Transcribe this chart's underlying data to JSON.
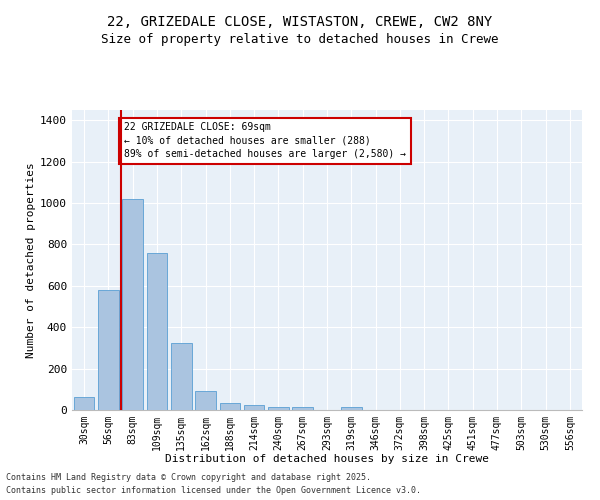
{
  "title_line1": "22, GRIZEDALE CLOSE, WISTASTON, CREWE, CW2 8NY",
  "title_line2": "Size of property relative to detached houses in Crewe",
  "xlabel": "Distribution of detached houses by size in Crewe",
  "ylabel": "Number of detached properties",
  "categories": [
    "30sqm",
    "56sqm",
    "83sqm",
    "109sqm",
    "135sqm",
    "162sqm",
    "188sqm",
    "214sqm",
    "240sqm",
    "267sqm",
    "293sqm",
    "319sqm",
    "346sqm",
    "372sqm",
    "398sqm",
    "425sqm",
    "451sqm",
    "477sqm",
    "503sqm",
    "530sqm",
    "556sqm"
  ],
  "values": [
    65,
    580,
    1020,
    760,
    325,
    90,
    35,
    25,
    15,
    15,
    0,
    15,
    0,
    0,
    0,
    0,
    0,
    0,
    0,
    0,
    0
  ],
  "bar_color": "#aac4e0",
  "bar_edge_color": "#5a9fd4",
  "vline_color": "#cc0000",
  "annotation_text": "22 GRIZEDALE CLOSE: 69sqm\n← 10% of detached houses are smaller (288)\n89% of semi-detached houses are larger (2,580) →",
  "annotation_box_color": "#ffffff",
  "annotation_edge_color": "#cc0000",
  "ylim": [
    0,
    1450
  ],
  "yticks": [
    0,
    200,
    400,
    600,
    800,
    1000,
    1200,
    1400
  ],
  "background_color": "#e8f0f8",
  "footer_line1": "Contains HM Land Registry data © Crown copyright and database right 2025.",
  "footer_line2": "Contains public sector information licensed under the Open Government Licence v3.0.",
  "title_fontsize": 10,
  "subtitle_fontsize": 9,
  "axis_label_fontsize": 8,
  "tick_fontsize": 7,
  "annotation_fontsize": 7,
  "footer_fontsize": 6
}
